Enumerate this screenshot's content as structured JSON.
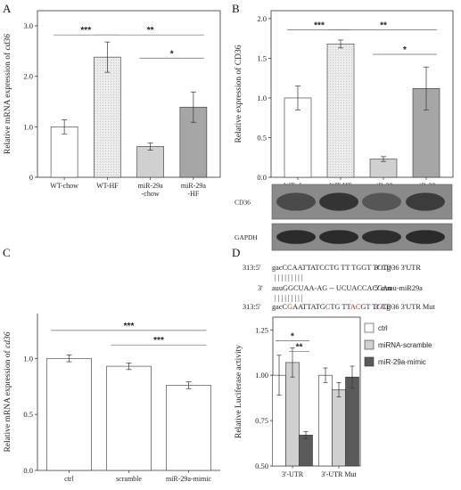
{
  "colors": {
    "white": "#ffffff",
    "light_dots": "#ebebeb",
    "light_gray": "#d0d0d0",
    "mid_gray": "#a6a6a6",
    "dark_gray": "#5a5a5a",
    "axis": "#333333",
    "mismatch_red": "#cc2222"
  },
  "chart_data": [
    {
      "panel": "A",
      "type": "bar",
      "ylabel_prefix": "Relative mRNA expression of ",
      "ylabel_gene": "cd36",
      "ylim": [
        0,
        3.3
      ],
      "yticks": [
        0,
        1.0,
        2.0,
        3.0
      ],
      "ytick_labels": [
        "0",
        "1.0",
        "2.0",
        "3.0"
      ],
      "categories": [
        [
          "WT-chow"
        ],
        [
          "WT-HF"
        ],
        [
          "miR-29a",
          "-chow"
        ],
        [
          "miR-29a",
          "-HF"
        ]
      ],
      "values": [
        1.0,
        2.38,
        0.61,
        1.39
      ],
      "errors": [
        0.14,
        0.3,
        0.07,
        0.3
      ],
      "fills": [
        "white",
        "light_dots",
        "light_gray",
        "mid_gray"
      ],
      "significance": [
        {
          "from": 0,
          "to": 1,
          "y": 2.82,
          "label": "***"
        },
        {
          "from": 1,
          "to": 3,
          "y": 2.82,
          "label": "**"
        },
        {
          "from": 2,
          "to": 3,
          "y": 2.36,
          "label": "*"
        }
      ]
    },
    {
      "panel": "B",
      "type": "bar",
      "ylabel_prefix": "Relative expression of CD36",
      "ylabel_gene": "",
      "ylim": [
        0,
        2.1
      ],
      "yticks": [
        0,
        0.5,
        1.0,
        1.5,
        2.0
      ],
      "ytick_labels": [
        "0.0",
        "0.5",
        "1.0",
        "1.5",
        "2.0"
      ],
      "categories": [
        [
          "WT-chow"
        ],
        [
          "WT-HF"
        ],
        [
          "miR-29a",
          "-chow"
        ],
        [
          "miR-29a",
          "-HF"
        ]
      ],
      "values": [
        1.0,
        1.68,
        0.23,
        1.12
      ],
      "errors": [
        0.15,
        0.05,
        0.03,
        0.27
      ],
      "fills": [
        "white",
        "light_dots",
        "light_gray",
        "mid_gray"
      ],
      "significance": [
        {
          "from": 0,
          "to": 1,
          "y": 1.86,
          "label": "***"
        },
        {
          "from": 1,
          "to": 3,
          "y": 1.86,
          "label": "**"
        },
        {
          "from": 2,
          "to": 3,
          "y": 1.55,
          "label": "*"
        }
      ]
    },
    {
      "panel": "C",
      "type": "bar",
      "ylabel_prefix": "Relative mRNA expression of ",
      "ylabel_gene": "cd36",
      "ylim": [
        0,
        1.4
      ],
      "yticks": [
        0.0,
        0.5,
        1.0
      ],
      "ytick_labels": [
        "0.0",
        "0.5",
        "1.0"
      ],
      "categories": [
        [
          "ctrl"
        ],
        [
          "scramble"
        ],
        [
          "miR-29a-mimic"
        ]
      ],
      "values": [
        1.0,
        0.93,
        0.76
      ],
      "errors": [
        0.03,
        0.03,
        0.03
      ],
      "fills": [
        "white",
        "white",
        "white"
      ],
      "significance": [
        {
          "from": 0,
          "to": 2,
          "y": 1.25,
          "label": "***"
        },
        {
          "from": 1,
          "to": 2,
          "y": 1.12,
          "label": "***"
        }
      ]
    },
    {
      "panel": "D",
      "type": "bar",
      "ylabel_prefix": "Relative Luciferase activity",
      "ylabel_gene": "",
      "ylim": [
        0.5,
        1.32
      ],
      "yticks": [
        0.5,
        0.75,
        1.0,
        1.25
      ],
      "ytick_labels": [
        "0.50",
        "0.75",
        "1.00",
        "1.25"
      ],
      "categories": [
        "3'-UTR",
        "3'-UTR Mut"
      ],
      "series": [
        {
          "name": "ctrl",
          "values": [
            1.0,
            1.0
          ],
          "errors": [
            0.11,
            0.04
          ],
          "fill": "white"
        },
        {
          "name": "miRNA-scramble",
          "values": [
            1.07,
            0.92
          ],
          "errors": [
            0.08,
            0.04
          ],
          "fill": "light_gray"
        },
        {
          "name": "miR-29a-mimic",
          "values": [
            0.67,
            0.99
          ],
          "errors": [
            0.02,
            0.06
          ],
          "fill": "dark_gray"
        }
      ],
      "significance": [
        {
          "group": 0,
          "from": 0,
          "to": 2,
          "y": 1.19,
          "label": "*"
        },
        {
          "group": 0,
          "from": 1,
          "to": 2,
          "y": 1.13,
          "label": "**"
        }
      ]
    }
  ],
  "western_blot": {
    "bands": [
      {
        "label": "CD36",
        "intensity": [
          0.62,
          0.82,
          0.5,
          0.74
        ]
      },
      {
        "label": "GAPDH",
        "intensity": [
          0.9,
          0.9,
          0.88,
          0.9
        ]
      }
    ]
  },
  "sequences": {
    "rows": [
      {
        "left": "313:5'",
        "seq": "gacCCAATTATCCTG TT TGGT TCTg",
        "right": "3'  CD36 3'UTR"
      },
      {
        "left": "3'",
        "seq": "auuGGCUAA-AG -- UCUACCACGAu",
        "right": "5'  mmu-miR29a"
      },
      {
        "left": "313:5'",
        "seq": "gacCGAATTATGCTG TTACGT TGTg",
        "right": "3'  CD36 3'UTR Mut"
      }
    ],
    "pairing_marks": "|     |  |  |       |  |  |  |  |",
    "mutant_red_positions": [
      4,
      12,
      18,
      19,
      24
    ]
  }
}
